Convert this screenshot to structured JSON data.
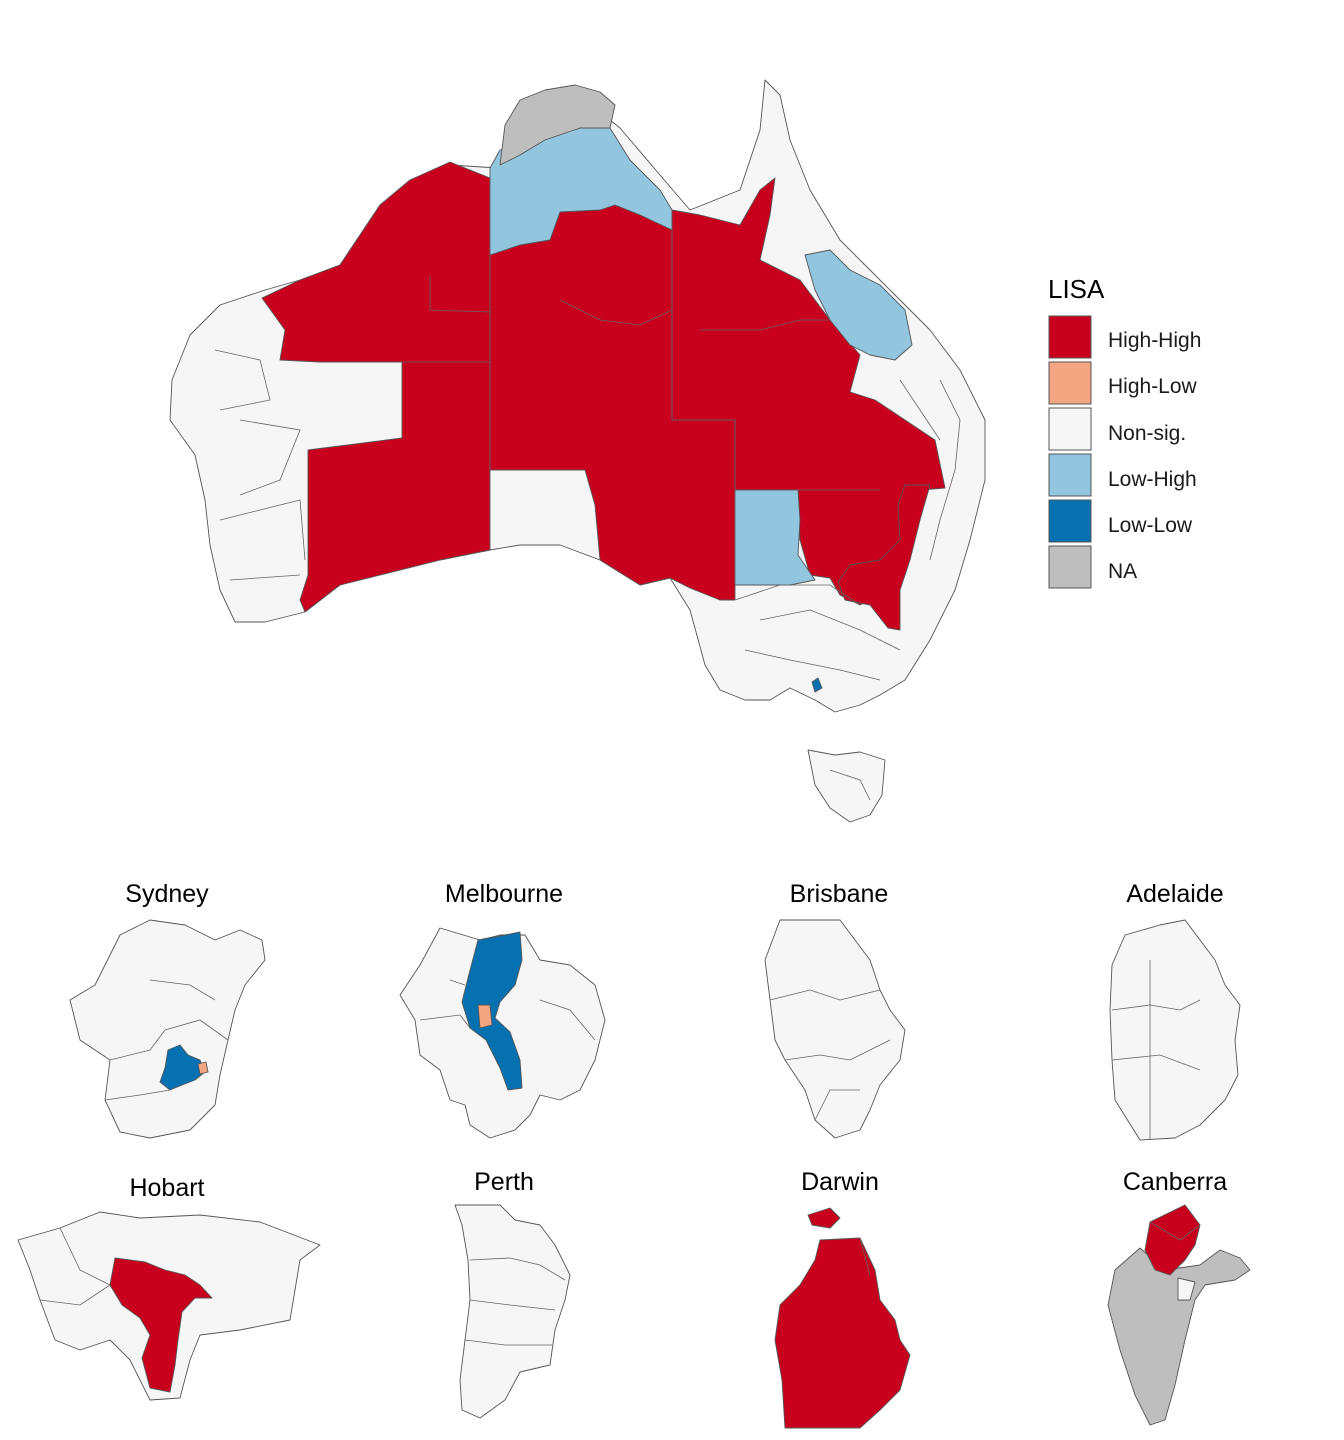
{
  "legend": {
    "title": "LISA",
    "items": [
      {
        "label": "High-High",
        "color": "#c8001e"
      },
      {
        "label": "High-Low",
        "color": "#f4a582"
      },
      {
        "label": "Non-sig.",
        "color": "#f6f6f6"
      },
      {
        "label": "Low-High",
        "color": "#92c5de"
      },
      {
        "label": "Low-Low",
        "color": "#0571b0"
      },
      {
        "label": "NA",
        "color": "#bebebe"
      }
    ]
  },
  "insets": [
    {
      "name": "Sydney"
    },
    {
      "name": "Melbourne"
    },
    {
      "name": "Brisbane"
    },
    {
      "name": "Adelaide"
    },
    {
      "name": "Hobart"
    },
    {
      "name": "Perth"
    },
    {
      "name": "Darwin"
    },
    {
      "name": "Canberra"
    }
  ],
  "colors": {
    "high_high": "#c8001e",
    "high_low": "#f4a582",
    "non_sig": "#f6f6f6",
    "low_high": "#92c5de",
    "low_low": "#0571b0",
    "na": "#bebebe",
    "boundary": "#555555"
  }
}
